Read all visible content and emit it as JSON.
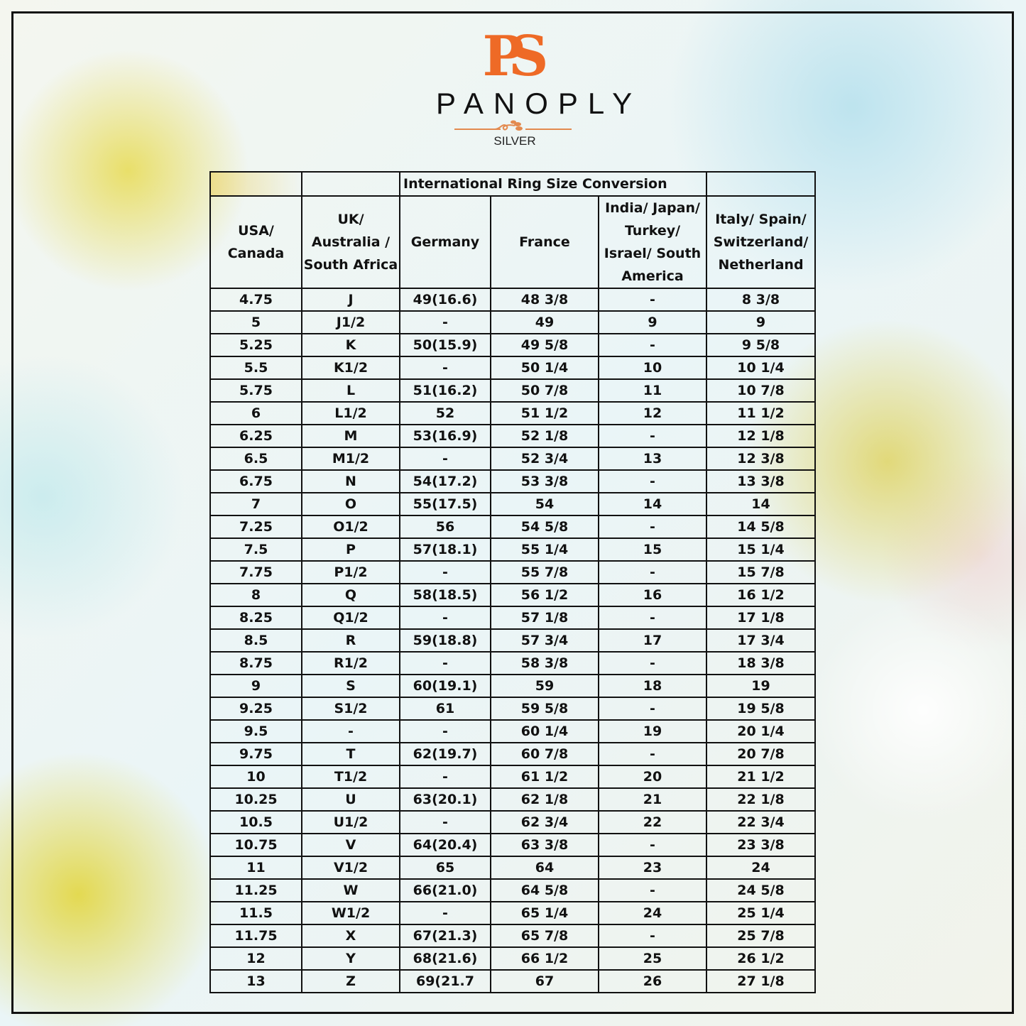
{
  "logo": {
    "monogram": "PS",
    "brand": "PANOPLY",
    "sub": "SILVER",
    "accent": "#ee6a26"
  },
  "table": {
    "title": "International Ring Size Conversion",
    "headers": [
      "USA/ Canada",
      "UK/ Australia / South Africa",
      "Germany",
      "France",
      "India/ Japan/ Turkey/ Israel/ South America",
      "Italy/ Spain/ Switzerland/ Netherland"
    ],
    "rows": [
      [
        "4.75",
        "J",
        "49(16.6)",
        "48 3/8",
        "-",
        "8 3/8"
      ],
      [
        "5",
        "J1/2",
        "-",
        "49",
        "9",
        "9"
      ],
      [
        "5.25",
        "K",
        "50(15.9)",
        "49 5/8",
        "-",
        "9 5/8"
      ],
      [
        "5.5",
        "K1/2",
        "-",
        "50 1/4",
        "10",
        "10 1/4"
      ],
      [
        "5.75",
        "L",
        "51(16.2)",
        "50 7/8",
        "11",
        "10 7/8"
      ],
      [
        "6",
        "L1/2",
        "52",
        "51 1/2",
        "12",
        "11 1/2"
      ],
      [
        "6.25",
        "M",
        "53(16.9)",
        "52 1/8",
        "-",
        "12 1/8"
      ],
      [
        "6.5",
        "M1/2",
        "-",
        "52 3/4",
        "13",
        "12 3/8"
      ],
      [
        "6.75",
        "N",
        "54(17.2)",
        "53 3/8",
        "-",
        "13 3/8"
      ],
      [
        "7",
        "O",
        "55(17.5)",
        "54",
        "14",
        "14"
      ],
      [
        "7.25",
        "O1/2",
        "56",
        "54 5/8",
        "-",
        "14 5/8"
      ],
      [
        "7.5",
        "P",
        "57(18.1)",
        "55 1/4",
        "15",
        "15 1/4"
      ],
      [
        "7.75",
        "P1/2",
        "-",
        "55 7/8",
        "-",
        "15 7/8"
      ],
      [
        "8",
        "Q",
        "58(18.5)",
        "56 1/2",
        "16",
        "16 1/2"
      ],
      [
        "8.25",
        "Q1/2",
        "-",
        "57 1/8",
        "-",
        "17 1/8"
      ],
      [
        "8.5",
        "R",
        "59(18.8)",
        "57 3/4",
        "17",
        "17 3/4"
      ],
      [
        "8.75",
        "R1/2",
        "-",
        "58 3/8",
        "-",
        "18 3/8"
      ],
      [
        "9",
        "S",
        "60(19.1)",
        "59",
        "18",
        "19"
      ],
      [
        "9.25",
        "S1/2",
        "61",
        "59 5/8",
        "-",
        "19 5/8"
      ],
      [
        "9.5",
        "-",
        "-",
        "60 1/4",
        "19",
        "20 1/4"
      ],
      [
        "9.75",
        "T",
        "62(19.7)",
        "60 7/8",
        "-",
        "20 7/8"
      ],
      [
        "10",
        "T1/2",
        "-",
        "61 1/2",
        "20",
        "21 1/2"
      ],
      [
        "10.25",
        "U",
        "63(20.1)",
        "62 1/8",
        "21",
        "22 1/8"
      ],
      [
        "10.5",
        "U1/2",
        "-",
        "62 3/4",
        "22",
        "22 3/4"
      ],
      [
        "10.75",
        "V",
        "64(20.4)",
        "63 3/8",
        "-",
        "23 3/8"
      ],
      [
        "11",
        "V1/2",
        "65",
        "64",
        "23",
        "24"
      ],
      [
        "11.25",
        "W",
        "66(21.0)",
        "64 5/8",
        "-",
        "24 5/8"
      ],
      [
        "11.5",
        "W1/2",
        "-",
        "65 1/4",
        "24",
        "25 1/4"
      ],
      [
        "11.75",
        "X",
        "67(21.3)",
        "65 7/8",
        "-",
        "25 7/8"
      ],
      [
        "12",
        "Y",
        "68(21.6)",
        "66 1/2",
        "25",
        "26 1/2"
      ],
      [
        "13",
        "Z",
        "69(21.7",
        "67",
        "26",
        "27 1/8"
      ]
    ]
  }
}
